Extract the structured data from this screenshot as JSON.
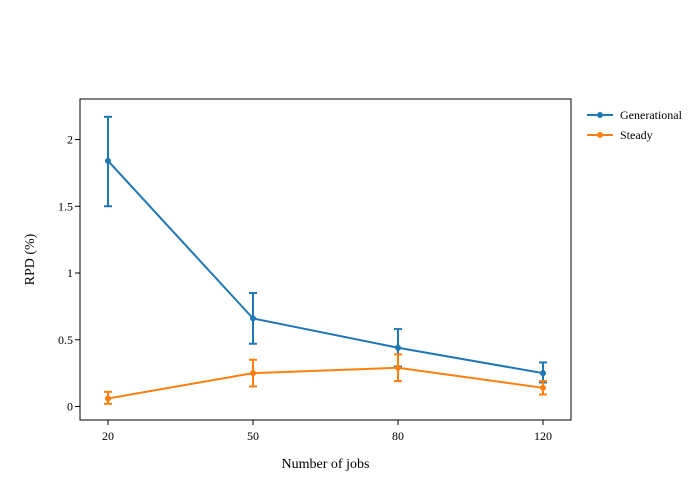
{
  "chart_data": {
    "type": "line",
    "x": [
      20,
      50,
      80,
      120
    ],
    "xlabel": "Number of jobs",
    "ylabel": "RPD (%)",
    "ylim": [
      -0.1,
      2.3
    ],
    "yticks": [
      0,
      0.5,
      1,
      1.5,
      2
    ],
    "ytick_labels": [
      "0",
      "0.5",
      "1",
      "1.5",
      "2"
    ],
    "xtick_labels": [
      "20",
      "50",
      "80",
      "120"
    ],
    "grid": false,
    "legend_position": "top-right",
    "series": [
      {
        "name": "Generational",
        "color": "#1f77b4",
        "values": [
          1.84,
          0.66,
          0.44,
          0.25
        ],
        "err_low": [
          1.5,
          0.47,
          0.3,
          0.18
        ],
        "err_high": [
          2.17,
          0.85,
          0.58,
          0.33
        ]
      },
      {
        "name": "Steady",
        "color": "#ff7f0e",
        "values": [
          0.06,
          0.25,
          0.29,
          0.14
        ],
        "err_low": [
          0.02,
          0.15,
          0.19,
          0.09
        ],
        "err_high": [
          0.11,
          0.35,
          0.39,
          0.19
        ]
      }
    ]
  }
}
